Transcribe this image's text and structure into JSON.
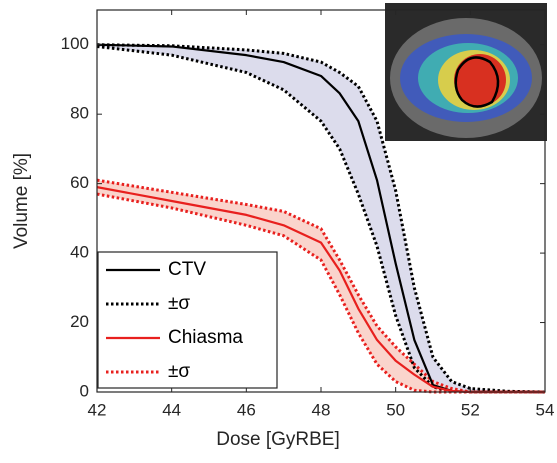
{
  "chart_data": {
    "type": "line",
    "xlabel": "Dose [GyRBE]",
    "ylabel": "Volume [%]",
    "x": [
      42,
      44,
      46,
      47,
      48,
      48.5,
      49,
      49.5,
      50,
      50.5,
      51,
      51.5,
      52,
      53,
      54
    ],
    "xlim": [
      42,
      54
    ],
    "xticks": [
      42,
      44,
      46,
      48,
      50,
      52,
      54
    ],
    "ylim": [
      0,
      110
    ],
    "yticks": [
      0,
      20,
      40,
      60,
      80,
      100
    ],
    "legend": "lower-left",
    "series": [
      {
        "name": "CTV",
        "color": "#000000",
        "style": "solid",
        "values": [
          100,
          99.5,
          97,
          95,
          91,
          86,
          78,
          61,
          37,
          15,
          2,
          0.3,
          0,
          0,
          0
        ]
      },
      {
        "name": "±σ",
        "color": "#000000",
        "style": "dotted",
        "band_color": "#dcdcec",
        "values": [
          100,
          99.7,
          98.5,
          97.5,
          95,
          92,
          88,
          78,
          58,
          30,
          10,
          3,
          1,
          0.2,
          0
        ],
        "lower": [
          99.5,
          97,
          92,
          87,
          78,
          70,
          57,
          42,
          22,
          7,
          1.5,
          0,
          0,
          0,
          0
        ]
      },
      {
        "name": "Chiasma",
        "color": "#e8201e",
        "style": "solid",
        "values": [
          59,
          55,
          51,
          48,
          43,
          35,
          24,
          15,
          9,
          5,
          1.5,
          0.3,
          0,
          0,
          0
        ]
      },
      {
        "name": "±σ",
        "color": "#e8201e",
        "style": "dotted",
        "band_color": "#fad4cc",
        "values": [
          61,
          57.5,
          54,
          52,
          47,
          38,
          28,
          19,
          13,
          8,
          3,
          1,
          0,
          0,
          0
        ],
        "lower": [
          57,
          53,
          48,
          45,
          38,
          28,
          17,
          8,
          3,
          0.5,
          0,
          0,
          0,
          0,
          0
        ]
      }
    ]
  }
}
